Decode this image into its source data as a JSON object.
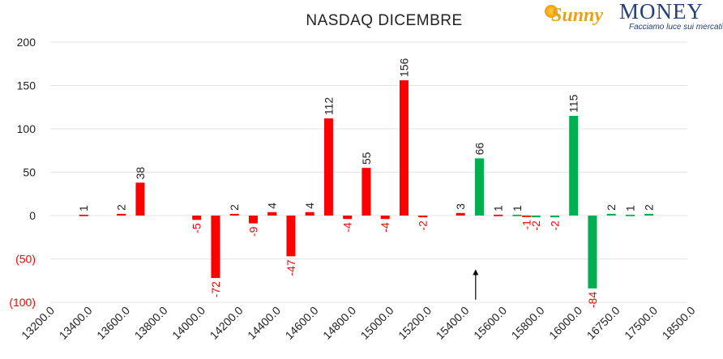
{
  "chart_data": {
    "type": "bar",
    "title": "NASDAQ DICEMBRE",
    "xlabel": "",
    "ylabel": "",
    "ylim": [
      -100,
      200
    ],
    "y_ticks": [
      {
        "value": 200,
        "label": "200",
        "negative": false
      },
      {
        "value": 150,
        "label": "150",
        "negative": false
      },
      {
        "value": 100,
        "label": "100",
        "negative": false
      },
      {
        "value": 50,
        "label": "50",
        "negative": false
      },
      {
        "value": 0,
        "label": "0",
        "negative": false
      },
      {
        "value": -50,
        "label": "(50)",
        "negative": true
      },
      {
        "value": -100,
        "label": "(100)",
        "negative": true
      }
    ],
    "grid": true,
    "categories": [
      "13200.0",
      "13400.0",
      "13600.0",
      "13800.0",
      "14000.0",
      "14200.0",
      "14400.0",
      "14600.0",
      "14800.0",
      "15000.0",
      "15200.0",
      "15400.0",
      "15600.0",
      "15800.0",
      "16000.0",
      "16750.0",
      "17500.0",
      "18500.0"
    ],
    "bars": [
      {
        "x": 0.8,
        "value": 1,
        "label": "1",
        "color": "red"
      },
      {
        "x": 1.8,
        "value": 2,
        "label": "2",
        "color": "red"
      },
      {
        "x": 2.3,
        "value": 38,
        "label": "38",
        "color": "red"
      },
      {
        "x": 3.8,
        "value": -5,
        "label": "-5",
        "color": "red"
      },
      {
        "x": 4.3,
        "value": -72,
        "label": "-72",
        "color": "red"
      },
      {
        "x": 4.8,
        "value": 2,
        "label": "2",
        "color": "red"
      },
      {
        "x": 5.3,
        "value": -9,
        "label": "-9",
        "color": "red"
      },
      {
        "x": 5.8,
        "value": 4,
        "label": "4",
        "color": "red"
      },
      {
        "x": 6.3,
        "value": -47,
        "label": "-47",
        "color": "red"
      },
      {
        "x": 6.8,
        "value": 4,
        "label": "4",
        "color": "red"
      },
      {
        "x": 7.3,
        "value": 112,
        "label": "112",
        "color": "red"
      },
      {
        "x": 7.8,
        "value": -4,
        "label": "-4",
        "color": "red"
      },
      {
        "x": 8.3,
        "value": 55,
        "label": "55",
        "color": "red"
      },
      {
        "x": 8.8,
        "value": -4,
        "label": "-4",
        "color": "red"
      },
      {
        "x": 9.3,
        "value": 156,
        "label": "156",
        "color": "red"
      },
      {
        "x": 9.8,
        "value": -2,
        "label": "-2",
        "color": "red"
      },
      {
        "x": 10.8,
        "value": 3,
        "label": "3",
        "color": "red"
      },
      {
        "x": 11.3,
        "value": 66,
        "label": "66",
        "color": "green"
      },
      {
        "x": 11.8,
        "value": 1,
        "label": "1",
        "color": "red"
      },
      {
        "x": 12.3,
        "value": 1,
        "label": "1",
        "color": "green"
      },
      {
        "x": 12.55,
        "value": -1,
        "label": "-1",
        "color": "red"
      },
      {
        "x": 12.8,
        "value": -2,
        "label": "-2",
        "color": "green"
      },
      {
        "x": 13.3,
        "value": -2,
        "label": "-2",
        "color": "green"
      },
      {
        "x": 13.8,
        "value": 115,
        "label": "115",
        "color": "green"
      },
      {
        "x": 14.3,
        "value": -84,
        "label": "-84",
        "color": "green"
      },
      {
        "x": 14.8,
        "value": 2,
        "label": "2",
        "color": "green"
      },
      {
        "x": 15.3,
        "value": 1,
        "label": "1",
        "color": "green"
      },
      {
        "x": 15.8,
        "value": 2,
        "label": "2",
        "color": "green"
      }
    ],
    "annotations": [
      {
        "type": "arrow",
        "x": 11.2,
        "from_value": -97,
        "to_value": -62
      }
    ],
    "colors": {
      "red": "#ff0000",
      "green": "#00b050",
      "negative_label": "#ff0000",
      "positive_label": "#222222",
      "grid": "#e4e4e4"
    }
  },
  "logo": {
    "sunny": "Sunny",
    "brand": "MONEY",
    "tagline": "Facciamo luce sui mercati"
  }
}
